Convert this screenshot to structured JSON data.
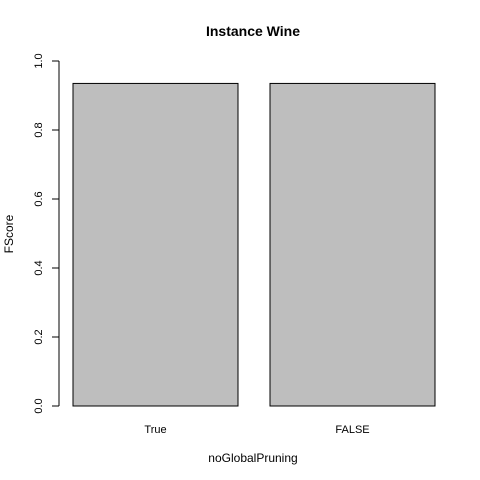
{
  "chart_data": {
    "type": "bar",
    "title": "Instance Wine",
    "xlabel": "noGlobalPruning",
    "ylabel": "FScore",
    "categories": [
      "True",
      "FALSE"
    ],
    "values": [
      0.935,
      0.935
    ],
    "ylim": [
      0,
      1
    ],
    "yticks": [
      "0.0",
      "0.2",
      "0.4",
      "0.6",
      "0.8",
      "1.0"
    ],
    "bar_color": "#bebebe",
    "grid": false
  }
}
